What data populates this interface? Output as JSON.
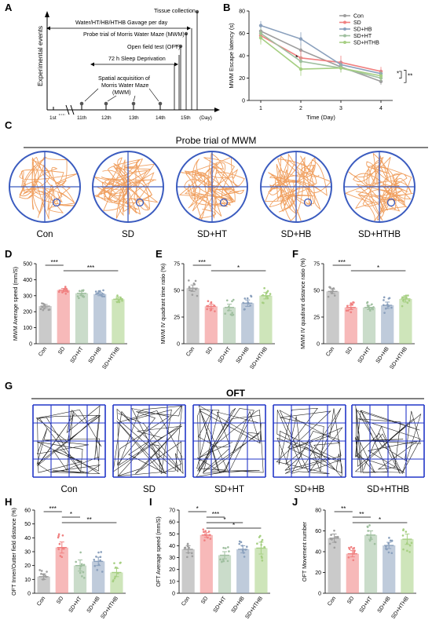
{
  "panels": {
    "A": "A",
    "B": "B",
    "C": "C",
    "D": "D",
    "E": "E",
    "F": "F",
    "G": "G",
    "H": "H",
    "I": "I",
    "J": "J"
  },
  "timeline": {
    "y_label": "Experimental events",
    "events": [
      "Tissue collection",
      "Water/HT/HB/HTHB  Gavage per day",
      "Probe trial of Morris Water Maze (MWM)",
      "Open field test (OFT)",
      "72 h Sleep Deprivation",
      "Spatial acquisition of",
      "Morris Water Maze",
      "(MWM)"
    ],
    "day_ticks": [
      "1st",
      "11th",
      "12th",
      "13th",
      "14th",
      "15th"
    ],
    "unit": "(Day)"
  },
  "colors": {
    "Con": "#9e9e9e",
    "SD": "#f08080",
    "SD+HB": "#8aa0bd",
    "SD+HT": "#9fbf9f",
    "SD+HTHB": "#a6cf82",
    "maze_circle": "#3a5bbf",
    "swim_path": "#f0a060",
    "oft_grid": "#2236c8"
  },
  "mwm_titles": {
    "probe": "Probe trial of MWM",
    "oft": "OFT"
  },
  "maze_labels": [
    "Con",
    "SD",
    "SD+HT",
    "SD+HB",
    "SD+HTHB"
  ],
  "oft_labels": [
    "Con",
    "SD",
    "SD+HT",
    "SD+HB",
    "SD+HTHB"
  ],
  "chart_data": [
    {
      "id": "B",
      "type": "line",
      "title": "",
      "xlabel": "Time (Day)",
      "ylabel": "MWM Escape latency (s)",
      "x": [
        1,
        2,
        3,
        4
      ],
      "ylim": [
        0,
        80
      ],
      "yticks": [
        0,
        20,
        40,
        60,
        80
      ],
      "legend": "top-right",
      "series": [
        {
          "name": "Con",
          "values": [
            62,
            45,
            30,
            17
          ],
          "err": [
            5,
            6,
            4,
            3
          ]
        },
        {
          "name": "SD",
          "values": [
            58,
            38,
            34,
            26
          ],
          "err": [
            6,
            7,
            6,
            4
          ]
        },
        {
          "name": "SD+HB",
          "values": [
            67,
            55,
            32,
            24
          ],
          "err": [
            4,
            6,
            4,
            3
          ]
        },
        {
          "name": "SD+HT",
          "values": [
            60,
            35,
            29,
            20
          ],
          "err": [
            5,
            5,
            4,
            3
          ]
        },
        {
          "name": "SD+HTHB",
          "values": [
            56,
            28,
            29,
            22
          ],
          "err": [
            6,
            6,
            4,
            4
          ]
        }
      ],
      "annotations": [
        "*",
        "*",
        "**"
      ]
    },
    {
      "id": "D",
      "type": "bar",
      "ylabel": "MWM Average speed (mm/S)",
      "categories": [
        "Con",
        "SD",
        "SD+HT",
        "SD+HB",
        "SD+HTHB"
      ],
      "values": [
        235,
        335,
        315,
        310,
        278
      ],
      "err": [
        10,
        10,
        12,
        10,
        14
      ],
      "ylim": [
        0,
        500
      ],
      "yticks": [
        0,
        100,
        200,
        300,
        400,
        500
      ],
      "annotations": [
        "***",
        "***"
      ]
    },
    {
      "id": "E",
      "type": "bar",
      "ylabel": "MWM IV quadrant time ratio (%)",
      "categories": [
        "Con",
        "SD",
        "SD+HT",
        "SD+HB",
        "SD+HTHB"
      ],
      "values": [
        52,
        35,
        34,
        38,
        45
      ],
      "err": [
        3,
        2,
        3,
        3,
        3
      ],
      "ylim": [
        0,
        75
      ],
      "yticks": [
        0,
        25,
        50,
        75
      ],
      "annotations": [
        "***",
        "*"
      ]
    },
    {
      "id": "F",
      "type": "bar",
      "ylabel": "MWM IV quadrant distance ratio (%)",
      "categories": [
        "Con",
        "SD",
        "SD+HT",
        "SD+HB",
        "SD+HTHB"
      ],
      "values": [
        49,
        34,
        34,
        36,
        42
      ],
      "err": [
        2,
        2,
        2,
        3,
        3
      ],
      "ylim": [
        0,
        75
      ],
      "yticks": [
        0,
        25,
        50,
        75
      ],
      "annotations": [
        "***",
        "*"
      ]
    },
    {
      "id": "H",
      "type": "bar",
      "ylabel": "OFT Inner/Outter field distance (%)",
      "categories": [
        "Con",
        "SD",
        "SD+HT",
        "SD+HB",
        "SD+HTHB"
      ],
      "values": [
        12,
        33,
        20,
        23,
        15
      ],
      "err": [
        2,
        4,
        4,
        3,
        3
      ],
      "ylim": [
        0,
        60
      ],
      "yticks": [
        0,
        10,
        20,
        30,
        40,
        50,
        60
      ],
      "annotations": [
        "***",
        "*",
        "**"
      ]
    },
    {
      "id": "I",
      "type": "bar",
      "ylabel": "OFT Average speed (mm/S)",
      "categories": [
        "Con",
        "SD",
        "SD+HT",
        "SD+HB",
        "SD+HTHB"
      ],
      "values": [
        37,
        49,
        32,
        37,
        38
      ],
      "err": [
        3,
        2,
        3,
        3,
        5
      ],
      "ylim": [
        0,
        70
      ],
      "yticks": [
        0,
        10,
        20,
        30,
        40,
        50,
        60,
        70
      ],
      "annotations": [
        "*",
        "***",
        "*",
        "*"
      ]
    },
    {
      "id": "J",
      "type": "bar",
      "ylabel": "OFT Movement number",
      "categories": [
        "Con",
        "SD",
        "SD+HT",
        "SD+HB",
        "SD+HTHB"
      ],
      "values": [
        53,
        38,
        56,
        46,
        52
      ],
      "err": [
        4,
        3,
        4,
        3,
        5
      ],
      "ylim": [
        0,
        80
      ],
      "yticks": [
        0,
        20,
        40,
        60,
        80
      ],
      "annotations": [
        "**",
        "**",
        "*"
      ]
    }
  ]
}
